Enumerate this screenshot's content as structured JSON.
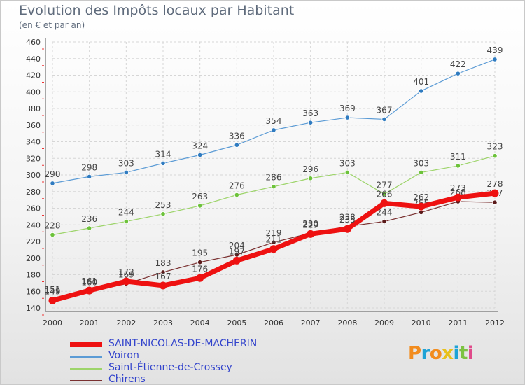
{
  "header": {
    "title": "Evolution des Impôts locaux par Habitant",
    "subtitle": "(en € et par an)"
  },
  "logo": {
    "text": "Proxiti",
    "colors": [
      "#f28c1e",
      "#1fa3d6",
      "#f28c1e",
      "#e8c11a",
      "#1fa3d6",
      "#7cc242",
      "#e04a8a"
    ]
  },
  "chart_data": {
    "type": "line",
    "title": "Evolution des Impôts locaux par Habitant",
    "subtitle": "(en € et par an)",
    "xlabel": "",
    "ylabel": "",
    "x": [
      "2000",
      "2001",
      "2002",
      "2003",
      "2004",
      "2005",
      "2006",
      "2007",
      "2008",
      "2009",
      "2010",
      "2011",
      "2012"
    ],
    "ylim": [
      140,
      460
    ],
    "yticks": [
      140,
      160,
      180,
      200,
      220,
      240,
      260,
      280,
      300,
      320,
      340,
      360,
      380,
      400,
      420,
      440,
      460
    ],
    "grid": true,
    "legend_position": "bottom-left",
    "series": [
      {
        "name": "Voiron",
        "color": "#5b9bd5",
        "dot": "#2f7bc0",
        "width": 1.2,
        "values": [
          290,
          298,
          303,
          314,
          324,
          336,
          354,
          363,
          369,
          367,
          401,
          422,
          439
        ]
      },
      {
        "name": "Saint-Étienne-de-Crossey",
        "color": "#9dd46a",
        "dot": "#6cc23a",
        "width": 1.2,
        "values": [
          228,
          236,
          244,
          253,
          263,
          276,
          286,
          296,
          303,
          277,
          303,
          311,
          323
        ]
      },
      {
        "name": "Chirens",
        "color": "#7a3030",
        "dot": "#5a1a1a",
        "width": 1.2,
        "values": [
          151,
          160,
          169,
          183,
          195,
          204,
          219,
          230,
          238,
          244,
          255,
          268,
          267
        ]
      },
      {
        "name": "SAINT-NICOLAS-DE-MACHERIN",
        "color": "#ee1111",
        "dot": "#ee1111",
        "width": 7,
        "values": [
          149,
          161,
          172,
          167,
          176,
          197,
          211,
          229,
          235,
          266,
          262,
          273,
          278
        ]
      }
    ]
  }
}
